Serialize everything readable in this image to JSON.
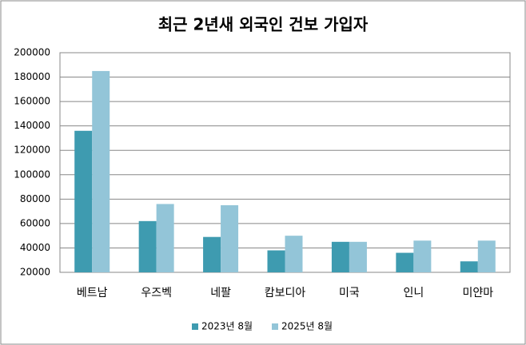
{
  "chart_data": {
    "type": "bar",
    "title": "최근 2년새 외국인 건보 가입자",
    "categories": [
      "베트남",
      "우즈벡",
      "네팔",
      "캄보디아",
      "미국",
      "인니",
      "미얀마"
    ],
    "series": [
      {
        "name": "2023년 8월",
        "color": "#3e9bb0",
        "values": [
          136000,
          62000,
          49000,
          38000,
          45000,
          36000,
          29000
        ]
      },
      {
        "name": "2025년 8월",
        "color": "#93c5d8",
        "values": [
          185000,
          76000,
          75000,
          50000,
          45000,
          46000,
          46000
        ]
      }
    ],
    "ylim": [
      20000,
      200000
    ],
    "yticks": [
      20000,
      40000,
      60000,
      80000,
      100000,
      120000,
      140000,
      160000,
      180000,
      200000
    ],
    "grid": true,
    "legend": "bottom"
  }
}
